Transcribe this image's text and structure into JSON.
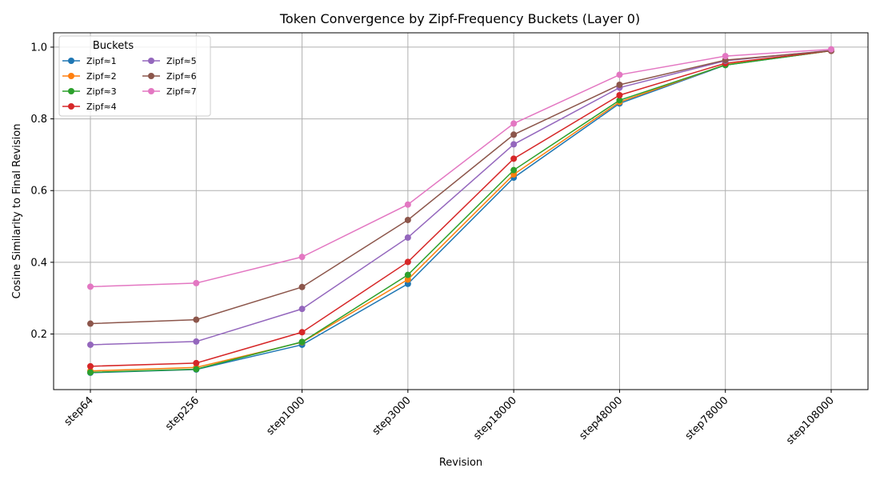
{
  "chart_data": {
    "type": "line",
    "title": "Token Convergence by Zipf-Frequency Buckets (Layer 0)",
    "xlabel": "Revision",
    "ylabel": "Cosine Similarity to Final Revision",
    "categories": [
      "step64",
      "step256",
      "step1000",
      "step3000",
      "step18000",
      "step48000",
      "step78000",
      "step108000"
    ],
    "ylim": [
      0.045,
      1.04
    ],
    "yticks": [
      0.2,
      0.4,
      0.6,
      0.8,
      1.0
    ],
    "ytick_labels": [
      "0.2",
      "0.4",
      "0.6",
      "0.8",
      "1.0"
    ],
    "grid": true,
    "legend": {
      "title": "Buckets",
      "placement": "top-left",
      "columns": 2
    },
    "series": [
      {
        "name": "Zipf≈1",
        "color": "#1f77b4",
        "values": [
          0.092,
          0.101,
          0.17,
          0.34,
          0.636,
          0.843,
          0.95,
          0.99
        ]
      },
      {
        "name": "Zipf≈2",
        "color": "#ff7f0e",
        "values": [
          0.097,
          0.107,
          0.177,
          0.352,
          0.645,
          0.847,
          0.951,
          0.99
        ]
      },
      {
        "name": "Zipf≈3",
        "color": "#2ca02c",
        "values": [
          0.093,
          0.102,
          0.178,
          0.365,
          0.657,
          0.852,
          0.95,
          0.99
        ]
      },
      {
        "name": "Zipf≈4",
        "color": "#d62728",
        "values": [
          0.11,
          0.119,
          0.205,
          0.401,
          0.689,
          0.866,
          0.955,
          0.99
        ]
      },
      {
        "name": "Zipf≈5",
        "color": "#9467bd",
        "values": [
          0.17,
          0.179,
          0.27,
          0.469,
          0.729,
          0.887,
          0.962,
          0.991
        ]
      },
      {
        "name": "Zipf≈6",
        "color": "#8c564b",
        "values": [
          0.229,
          0.24,
          0.331,
          0.518,
          0.756,
          0.895,
          0.964,
          0.99
        ]
      },
      {
        "name": "Zipf≈7",
        "color": "#e377c2",
        "values": [
          0.332,
          0.342,
          0.415,
          0.561,
          0.787,
          0.923,
          0.975,
          0.994
        ]
      }
    ]
  }
}
